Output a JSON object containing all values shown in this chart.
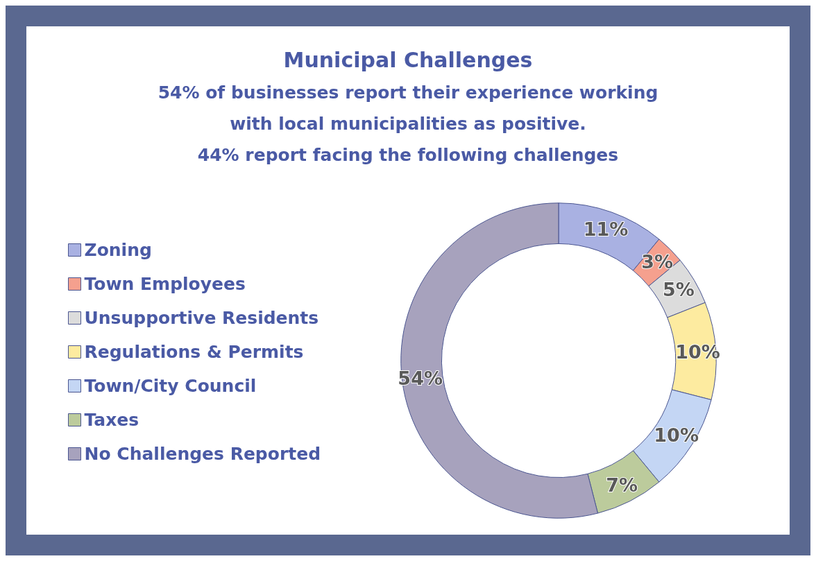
{
  "chart_data": {
    "type": "donut",
    "title": "Municipal Challenges",
    "subtitle": "54% of businesses report their experience working\nwith local municipalities as positive.\n44% report facing the following challenges",
    "categories": [
      "Zoning",
      "Town Employees",
      "Unsupportive Residents",
      "Regulations & Permits",
      "Town/City Council",
      "Taxes",
      "No Challenges Reported"
    ],
    "values": [
      11,
      3,
      5,
      10,
      10,
      7,
      54
    ],
    "colors": [
      "#a9b1e2",
      "#f5a08e",
      "#dcdcdc",
      "#fdeba0",
      "#c4d6f4",
      "#bccb9c",
      "#a7a2bd"
    ],
    "value_labels": [
      "11%",
      "3%",
      "5%",
      "10%",
      "10%",
      "7%",
      "54%"
    ],
    "legend": "left"
  }
}
